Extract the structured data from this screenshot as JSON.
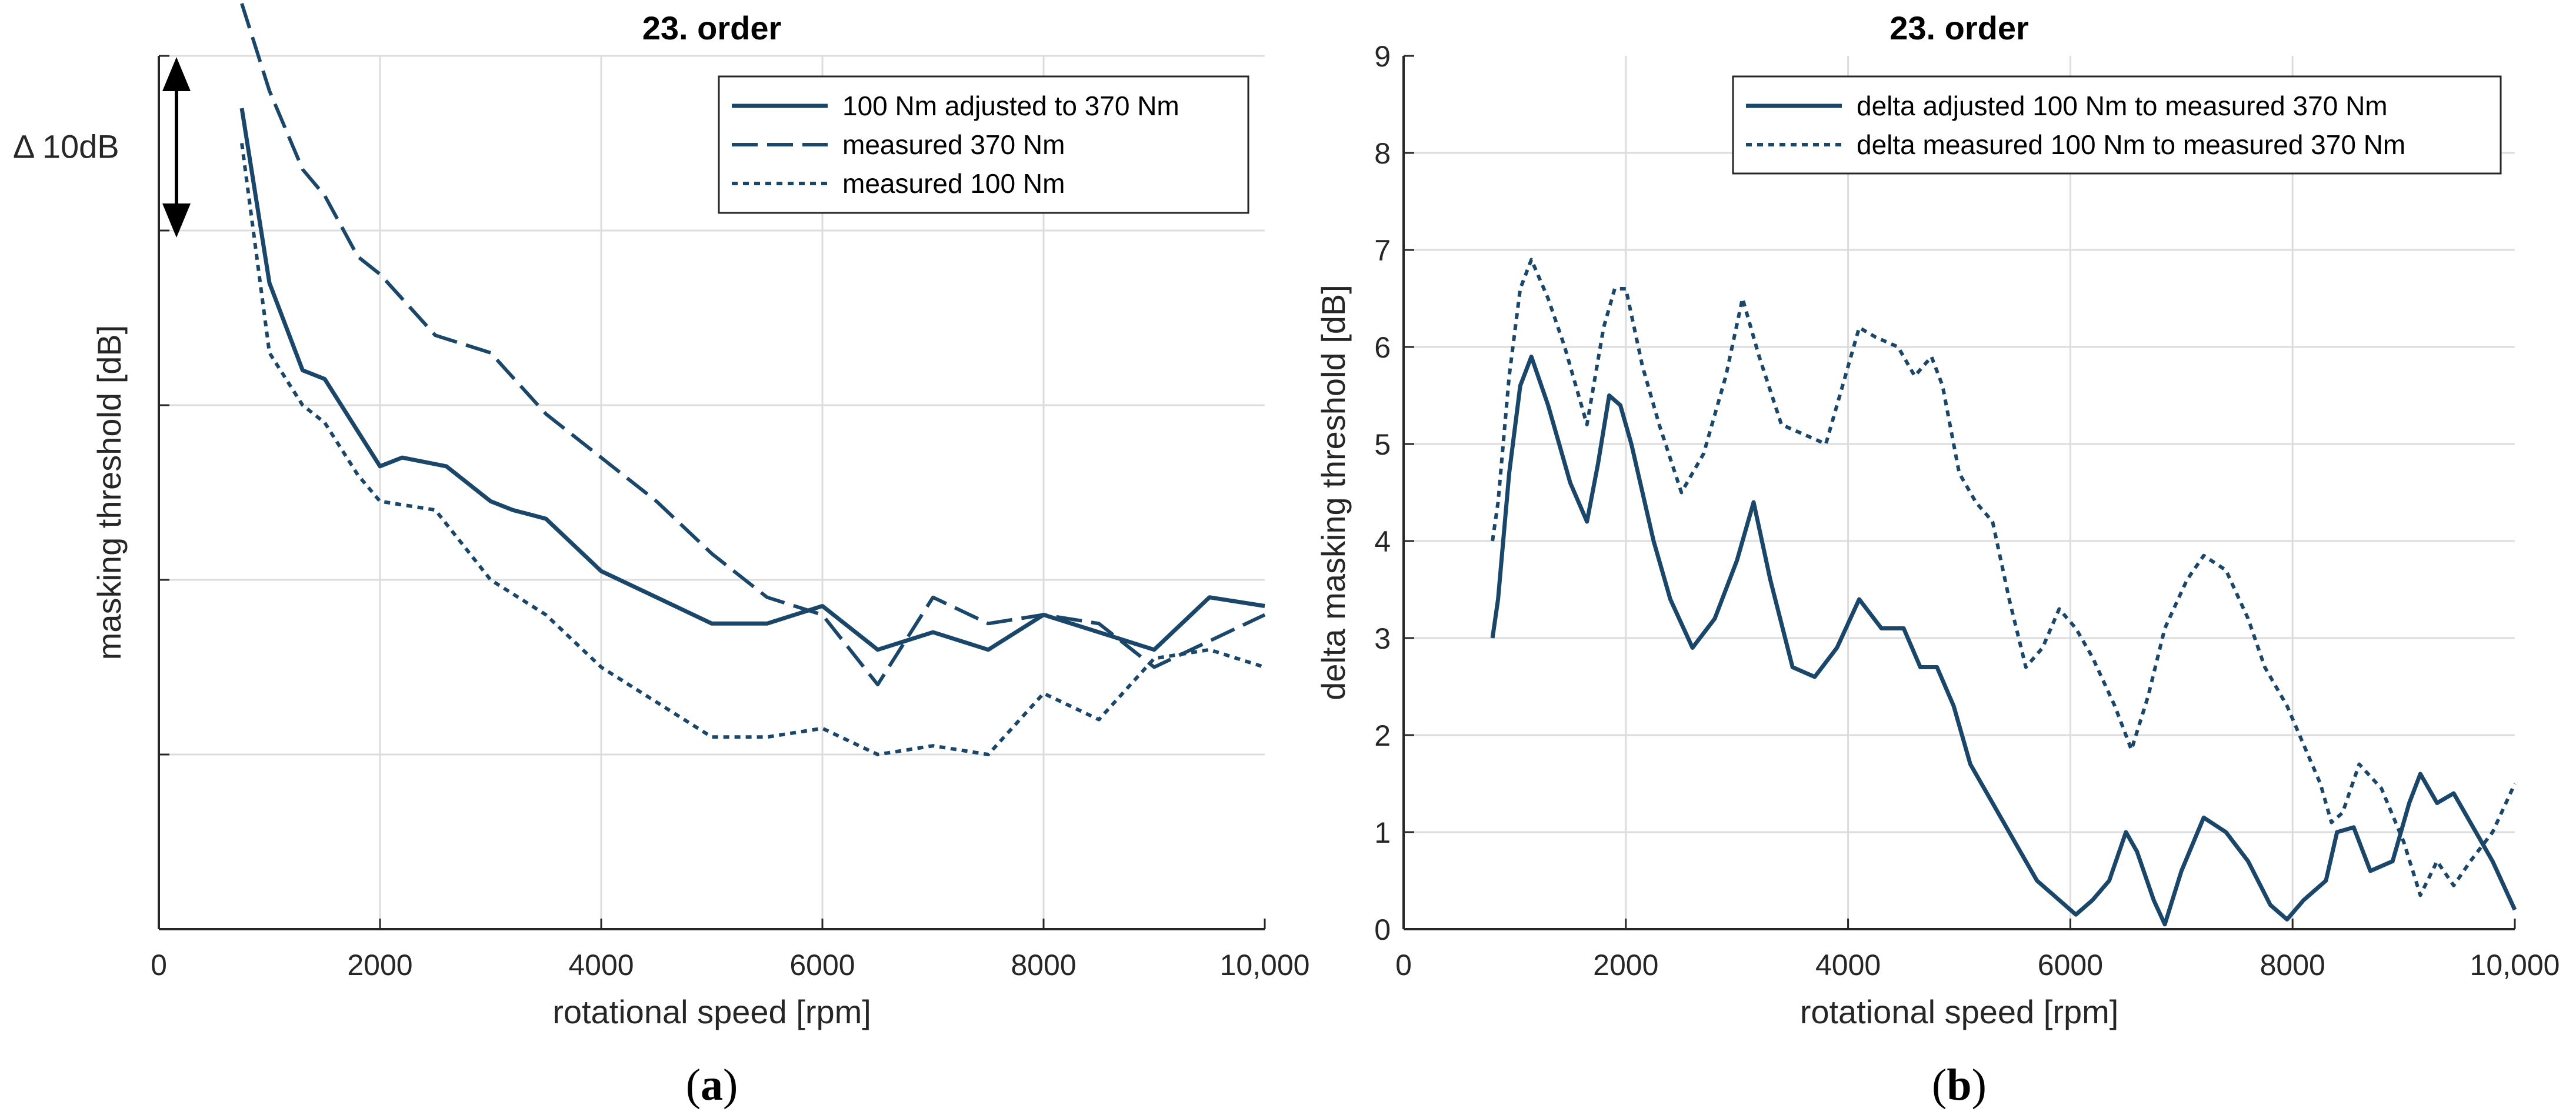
{
  "chart_data": [
    {
      "type": "line",
      "title": "23. order",
      "xlabel": "rotational speed [rpm]",
      "ylabel": "masking threshold [dB]",
      "xlim": [
        0,
        10000
      ],
      "xticks": [
        0,
        2000,
        4000,
        6000,
        8000,
        10000
      ],
      "xtick_labels": [
        "0",
        "2000",
        "4000",
        "6000",
        "8000",
        "10,000"
      ],
      "ylim": [
        0,
        50
      ],
      "y_grid_lines": [
        10,
        20,
        30,
        40,
        50
      ],
      "grid": true,
      "scale_annotation": "Δ 10dB",
      "legend_position": "top-right",
      "caption": "(a)",
      "caption_letter": "a",
      "color": "#1a4669",
      "series": [
        {
          "name": "100 Nm adjusted to 370 Nm",
          "style": "solid",
          "x": [
            750,
            1000,
            1300,
            1500,
            1800,
            2000,
            2200,
            2600,
            3000,
            3200,
            3500,
            4000,
            4500,
            5000,
            5500,
            6000,
            6500,
            7000,
            7500,
            8000,
            8500,
            9000,
            9500,
            10000
          ],
          "values": [
            47,
            37,
            32,
            31.5,
            28.5,
            26.5,
            27,
            26.5,
            24.5,
            24,
            23.5,
            20.5,
            19,
            17.5,
            17.5,
            18.5,
            16,
            17,
            16,
            18,
            17,
            16,
            19,
            18.5
          ]
        },
        {
          "name": "measured 370 Nm",
          "style": "dashed",
          "x": [
            750,
            1000,
            1300,
            1500,
            1800,
            2000,
            2500,
            3000,
            3500,
            4000,
            4500,
            5000,
            5500,
            6000,
            6500,
            7000,
            7500,
            8000,
            8500,
            9000,
            10000
          ],
          "values": [
            53,
            48,
            43.5,
            42,
            38.5,
            37.5,
            34,
            33,
            29.5,
            27,
            24.5,
            21.5,
            19,
            18,
            14,
            19,
            17.5,
            18,
            17.5,
            15,
            18
          ]
        },
        {
          "name": "measured 100 Nm",
          "style": "dotted",
          "x": [
            750,
            1000,
            1300,
            1500,
            1800,
            2000,
            2500,
            3000,
            3500,
            4000,
            4500,
            5000,
            5500,
            6000,
            6500,
            7000,
            7500,
            8000,
            8500,
            9000,
            9500,
            10000
          ],
          "values": [
            45,
            33,
            30,
            29,
            26,
            24.5,
            24,
            20,
            18,
            15,
            13,
            11,
            11,
            11.5,
            10,
            10.5,
            10,
            13.5,
            12,
            15.5,
            16,
            15
          ]
        }
      ]
    },
    {
      "type": "line",
      "title": "23. order",
      "xlabel": "rotational speed [rpm]",
      "ylabel": "delta masking threshold [dB]",
      "xlim": [
        0,
        10000
      ],
      "xticks": [
        0,
        2000,
        4000,
        6000,
        8000,
        10000
      ],
      "xtick_labels": [
        "0",
        "2000",
        "4000",
        "6000",
        "8000",
        "10,000"
      ],
      "ylim": [
        0,
        9
      ],
      "yticks": [
        0,
        1,
        2,
        3,
        4,
        5,
        6,
        7,
        8,
        9
      ],
      "grid": true,
      "legend_position": "top-right",
      "caption": "(b)",
      "caption_letter": "b",
      "color": "#1a4669",
      "series": [
        {
          "name": "delta adjusted 100 Nm to measured 370 Nm",
          "style": "solid",
          "x": [
            800,
            850,
            950,
            1050,
            1150,
            1300,
            1400,
            1500,
            1650,
            1750,
            1850,
            1950,
            2050,
            2150,
            2250,
            2400,
            2600,
            2800,
            3000,
            3150,
            3300,
            3500,
            3700,
            3900,
            4100,
            4300,
            4500,
            4650,
            4800,
            4950,
            5100,
            5300,
            5500,
            5700,
            5900,
            6050,
            6200,
            6350,
            6500,
            6600,
            6750,
            6850,
            7000,
            7200,
            7400,
            7600,
            7800,
            7950,
            8100,
            8300,
            8400,
            8550,
            8700,
            8900,
            9050,
            9150,
            9300,
            9450,
            9600,
            9800,
            10000
          ],
          "values": [
            3.0,
            3.4,
            4.7,
            5.6,
            5.9,
            5.4,
            5.0,
            4.6,
            4.2,
            4.8,
            5.5,
            5.4,
            5.0,
            4.5,
            4.0,
            3.4,
            2.9,
            3.2,
            3.8,
            4.4,
            3.6,
            2.7,
            2.6,
            2.9,
            3.4,
            3.1,
            3.1,
            2.7,
            2.7,
            2.3,
            1.7,
            1.3,
            0.9,
            0.5,
            0.3,
            0.15,
            0.3,
            0.5,
            1.0,
            0.8,
            0.3,
            0.05,
            0.6,
            1.15,
            1.0,
            0.7,
            0.25,
            0.1,
            0.3,
            0.5,
            1.0,
            1.05,
            0.6,
            0.7,
            1.3,
            1.6,
            1.3,
            1.4,
            1.1,
            0.7,
            0.2
          ]
        },
        {
          "name": "delta measured 100 Nm to measured 370 Nm",
          "style": "dotted",
          "x": [
            800,
            850,
            950,
            1050,
            1150,
            1300,
            1450,
            1650,
            1800,
            1900,
            2000,
            2150,
            2300,
            2500,
            2700,
            2900,
            3050,
            3200,
            3400,
            3600,
            3800,
            3950,
            4100,
            4250,
            4450,
            4600,
            4750,
            4850,
            5000,
            5150,
            5300,
            5450,
            5600,
            5750,
            5900,
            6050,
            6200,
            6400,
            6550,
            6700,
            6850,
            7050,
            7200,
            7400,
            7600,
            7750,
            7950,
            8100,
            8250,
            8350,
            8450,
            8600,
            8800,
            9000,
            9150,
            9300,
            9450,
            9600,
            9800,
            10000
          ],
          "values": [
            4.0,
            4.4,
            5.7,
            6.6,
            6.9,
            6.5,
            6.0,
            5.2,
            6.2,
            6.6,
            6.6,
            5.8,
            5.2,
            4.5,
            4.9,
            5.7,
            6.5,
            5.9,
            5.2,
            5.1,
            5.0,
            5.6,
            6.2,
            6.1,
            6.0,
            5.7,
            5.9,
            5.6,
            4.7,
            4.4,
            4.2,
            3.4,
            2.7,
            2.9,
            3.3,
            3.1,
            2.8,
            2.3,
            1.85,
            2.4,
            3.1,
            3.6,
            3.85,
            3.7,
            3.2,
            2.7,
            2.3,
            1.9,
            1.5,
            1.1,
            1.2,
            1.7,
            1.45,
            0.9,
            0.35,
            0.7,
            0.45,
            0.7,
            1.0,
            1.5
          ]
        }
      ]
    }
  ]
}
